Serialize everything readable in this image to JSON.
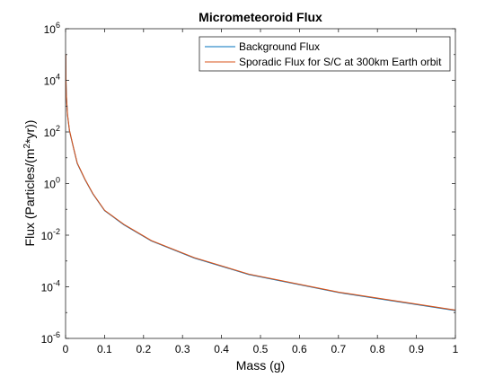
{
  "chart_data": {
    "type": "line",
    "title": "Micrometeoroid Flux",
    "xlabel": "Mass (g)",
    "ylabel": "Flux (Particles/(m2*yr))",
    "ylabel_parts": {
      "pre": "Flux (Particles/(m",
      "sup": "2",
      "post": "*yr))"
    },
    "xlim": [
      0,
      1
    ],
    "ylim": [
      1e-06,
      1000000.0
    ],
    "yscale": "log",
    "x_ticks": [
      {
        "value": 0,
        "label": "0"
      },
      {
        "value": 0.1,
        "label": "0.1"
      },
      {
        "value": 0.2,
        "label": "0.2"
      },
      {
        "value": 0.3,
        "label": "0.3"
      },
      {
        "value": 0.4,
        "label": "0.4"
      },
      {
        "value": 0.5,
        "label": "0.5"
      },
      {
        "value": 0.6,
        "label": "0.6"
      },
      {
        "value": 0.7,
        "label": "0.7"
      },
      {
        "value": 0.8,
        "label": "0.8"
      },
      {
        "value": 0.9,
        "label": "0.9"
      },
      {
        "value": 1,
        "label": "1"
      }
    ],
    "y_ticks": [
      {
        "value": 1e-06,
        "base": "10",
        "exp": "-6"
      },
      {
        "value": 0.0001,
        "base": "10",
        "exp": "-4"
      },
      {
        "value": 0.01,
        "base": "10",
        "exp": "-2"
      },
      {
        "value": 1,
        "base": "10",
        "exp": "0"
      },
      {
        "value": 100.0,
        "base": "10",
        "exp": "2"
      },
      {
        "value": 10000.0,
        "base": "10",
        "exp": "4"
      },
      {
        "value": 1000000.0,
        "base": "10",
        "exp": "6"
      }
    ],
    "legend_position": "top-right",
    "series": [
      {
        "name": "Background Flux",
        "color": "#0072BD",
        "x": [
          0.0005,
          0.001,
          0.002,
          0.005,
          0.01,
          0.02,
          0.03,
          0.05,
          0.07,
          0.1,
          0.15,
          0.22,
          0.33,
          0.47,
          0.7,
          1.0
        ],
        "y": [
          100000,
          10000,
          2500,
          450,
          110,
          25,
          6,
          1.4,
          0.4,
          0.09,
          0.025,
          0.006,
          0.0013,
          0.0003,
          6e-05,
          1.2e-05
        ]
      },
      {
        "name": "Sporadic Flux for S/C at 300km Earth orbit",
        "color": "#D95319",
        "x": [
          0.0005,
          0.001,
          0.002,
          0.005,
          0.01,
          0.02,
          0.03,
          0.05,
          0.07,
          0.1,
          0.15,
          0.22,
          0.33,
          0.47,
          0.7,
          1.0
        ],
        "y": [
          105000,
          10500,
          2600,
          470,
          115,
          26,
          6.2,
          1.45,
          0.41,
          0.092,
          0.026,
          0.0062,
          0.00135,
          0.00031,
          6.2e-05,
          1.25e-05
        ]
      }
    ]
  }
}
